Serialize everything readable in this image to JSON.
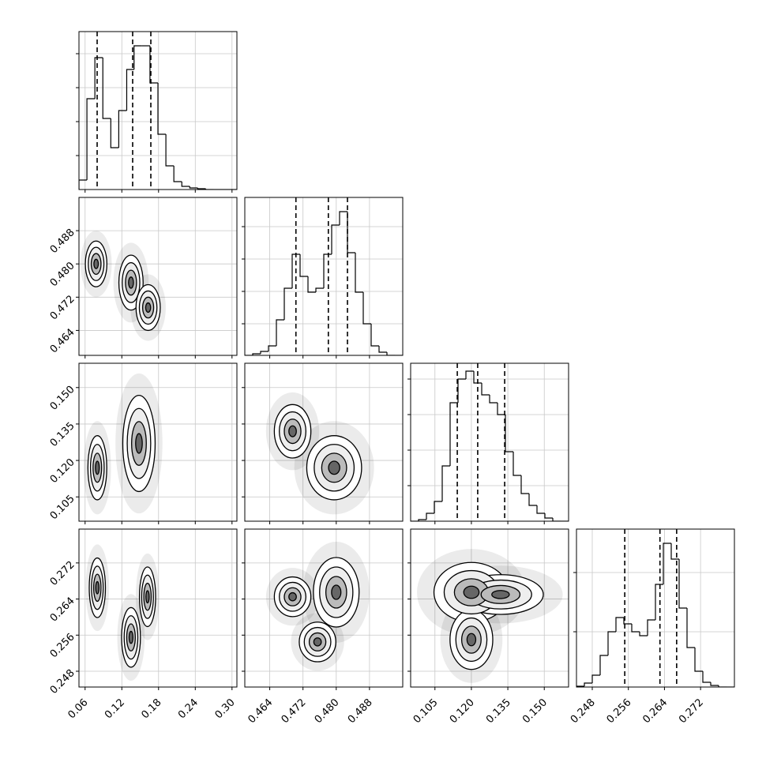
{
  "chart_data": {
    "type": "corner",
    "grid": true,
    "line_color": "#000000",
    "parameters": [
      {
        "lim": [
          0.05,
          0.308
        ],
        "ticks": [
          0.06,
          0.12,
          0.18,
          0.24,
          {
            "value": 0.3,
            "label": "0.30"
          }
        ]
      },
      {
        "lim": [
          0.458,
          0.496
        ],
        "ticks": [
          0.464,
          0.472,
          {
            "value": 0.48,
            "label": "0.480"
          },
          0.488
        ]
      },
      {
        "lim": [
          0.095,
          0.16
        ],
        "ticks": [
          0.105,
          {
            "value": 0.12,
            "label": "0.120"
          },
          0.135,
          {
            "value": 0.15,
            "label": "0.150"
          }
        ]
      },
      {
        "lim": [
          0.2445,
          0.2795
        ],
        "ticks": [
          0.248,
          0.256,
          0.264,
          0.272
        ]
      }
    ],
    "histograms": [
      {
        "bins": [
          0.05,
          0.063,
          0.076,
          0.089,
          0.102,
          0.115,
          0.128,
          0.14,
          0.153,
          0.166,
          0.179,
          0.192,
          0.205,
          0.218,
          0.231,
          0.244,
          0.257,
          0.27,
          0.282,
          0.295,
          0.308
        ],
        "counts": [
          12,
          115,
          167,
          90,
          53,
          100,
          152,
          182,
          182,
          135,
          70,
          30,
          10,
          4,
          2,
          1,
          0,
          0,
          0,
          0
        ],
        "quantiles": [
          0.0797,
          0.1377,
          0.1674
        ],
        "ylim": [
          0,
          200
        ],
        "yticks": [
          43,
          86,
          129,
          172
        ]
      },
      {
        "bins": [
          0.458,
          0.4599,
          0.4618,
          0.4637,
          0.4656,
          0.4675,
          0.4694,
          0.4713,
          0.4732,
          0.4751,
          0.477,
          0.4789,
          0.4808,
          0.4827,
          0.4846,
          0.4865,
          0.4884,
          0.4903,
          0.4922,
          0.4941,
          0.496
        ],
        "counts": [
          0,
          2,
          5,
          12,
          45,
          85,
          128,
          100,
          80,
          85,
          128,
          165,
          182,
          130,
          80,
          40,
          12,
          4,
          0,
          0
        ],
        "quantiles": [
          0.4703,
          0.4781,
          0.4827
        ],
        "ylim": [
          0,
          200
        ],
        "yticks": [
          40,
          81,
          122,
          163
        ]
      },
      {
        "bins": [
          0.095,
          0.09825,
          0.1015,
          0.10475,
          0.108,
          0.11125,
          0.1145,
          0.11775,
          0.121,
          0.12425,
          0.1275,
          0.13075,
          0.134,
          0.13725,
          0.1405,
          0.14375,
          0.147,
          0.15025,
          0.1535,
          0.15675,
          0.16
        ],
        "counts": [
          0,
          2,
          10,
          25,
          70,
          150,
          180,
          190,
          175,
          160,
          150,
          135,
          88,
          58,
          35,
          20,
          10,
          4,
          0,
          0
        ],
        "quantiles": [
          0.1142,
          0.1226,
          0.1337
        ],
        "ylim": [
          0,
          200
        ],
        "yticks": [
          45,
          90,
          135,
          180
        ]
      },
      {
        "bins": [
          0.2445,
          0.24625,
          0.248,
          0.24975,
          0.2515,
          0.25325,
          0.255,
          0.25675,
          0.2585,
          0.26025,
          0.262,
          0.26375,
          0.2655,
          0.26725,
          0.269,
          0.27075,
          0.2725,
          0.27425,
          0.276,
          0.27775,
          0.2795
        ],
        "counts": [
          1,
          5,
          15,
          40,
          70,
          88,
          80,
          70,
          65,
          85,
          130,
          182,
          162,
          100,
          50,
          20,
          6,
          2,
          0,
          0
        ],
        "quantiles": [
          0.2552,
          0.263,
          0.2667
        ],
        "ylim": [
          0,
          200
        ],
        "yticks": [
          70,
          145
        ]
      }
    ],
    "panels": [
      {
        "pair": [
          0,
          1
        ],
        "clusters": [
          {
            "x": 0.078,
            "y": 0.48,
            "sx": 0.008,
            "sy": 0.0025
          },
          {
            "x": 0.135,
            "y": 0.4755,
            "sx": 0.009,
            "sy": 0.003
          },
          {
            "x": 0.163,
            "y": 0.4695,
            "sx": 0.009,
            "sy": 0.0025
          }
        ]
      },
      {
        "pair": [
          0,
          2
        ],
        "clusters": [
          {
            "x": 0.08,
            "y": 0.117,
            "sx": 0.007,
            "sy": 0.006
          },
          {
            "x": 0.148,
            "y": 0.127,
            "sx": 0.012,
            "sy": 0.009
          }
        ]
      },
      {
        "pair": [
          1,
          2
        ],
        "clusters": [
          {
            "x": 0.4695,
            "y": 0.132,
            "sx": 0.002,
            "sy": 0.005
          },
          {
            "x": 0.4795,
            "y": 0.117,
            "sx": 0.003,
            "sy": 0.006
          }
        ]
      },
      {
        "pair": [
          0,
          3
        ],
        "clusters": [
          {
            "x": 0.08,
            "y": 0.2665,
            "sx": 0.006,
            "sy": 0.003
          },
          {
            "x": 0.135,
            "y": 0.2555,
            "sx": 0.007,
            "sy": 0.003
          },
          {
            "x": 0.162,
            "y": 0.2645,
            "sx": 0.006,
            "sy": 0.003
          }
        ]
      },
      {
        "pair": [
          1,
          3
        ],
        "clusters": [
          {
            "x": 0.4695,
            "y": 0.2645,
            "sx": 0.002,
            "sy": 0.002
          },
          {
            "x": 0.4755,
            "y": 0.2545,
            "sx": 0.002,
            "sy": 0.002
          },
          {
            "x": 0.48,
            "y": 0.2655,
            "sx": 0.0025,
            "sy": 0.0035
          }
        ]
      },
      {
        "pair": [
          2,
          3
        ],
        "clusters": [
          {
            "x": 0.12,
            "y": 0.2655,
            "sx": 0.007,
            "sy": 0.003
          },
          {
            "x": 0.132,
            "y": 0.265,
            "sx": 0.008,
            "sy": 0.002
          },
          {
            "x": 0.12,
            "y": 0.255,
            "sx": 0.004,
            "sy": 0.003
          }
        ]
      }
    ]
  }
}
